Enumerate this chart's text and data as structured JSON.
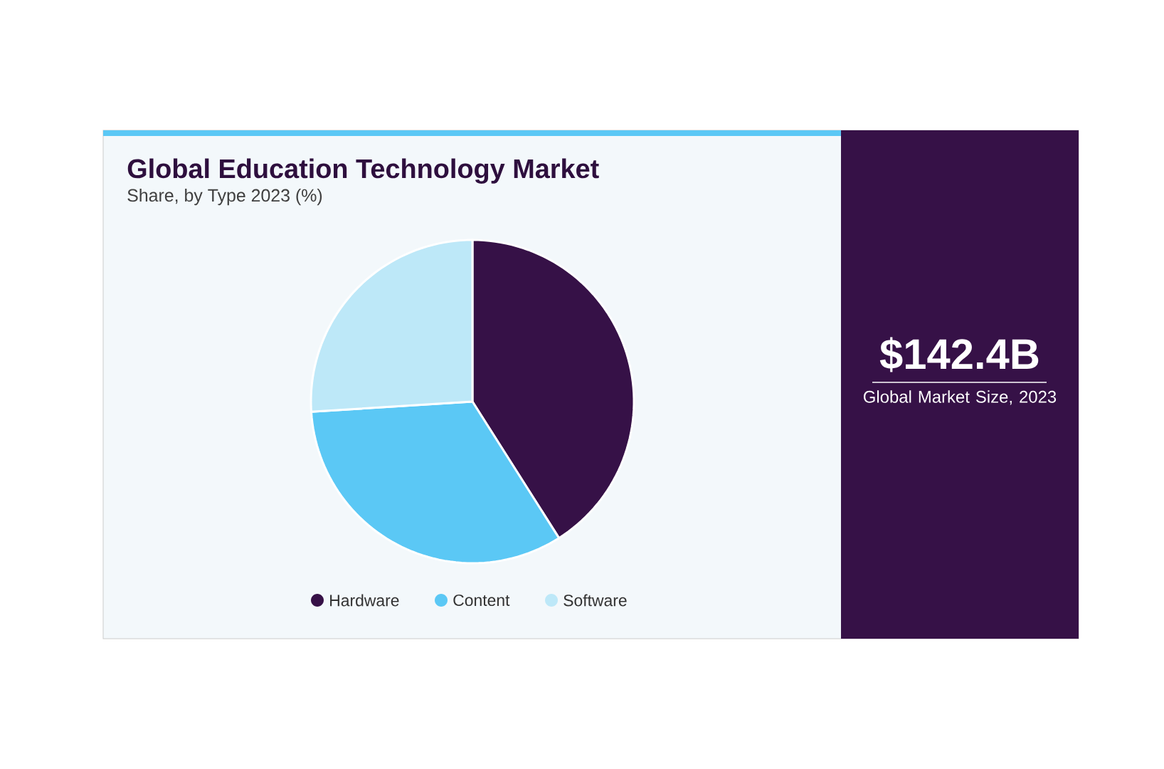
{
  "chart_data": {
    "type": "pie",
    "title": "Global Education Technology Market",
    "subtitle": "Share, by Type 2023 (%)",
    "categories": [
      "Hardware",
      "Content",
      "Software"
    ],
    "values": [
      41,
      33,
      26
    ],
    "colors": [
      "#361147",
      "#5bc8f5",
      "#bde8f8"
    ],
    "legend": "bottom",
    "annotations": [
      "$142.4B",
      "Global Market Size, 2023"
    ]
  }
}
